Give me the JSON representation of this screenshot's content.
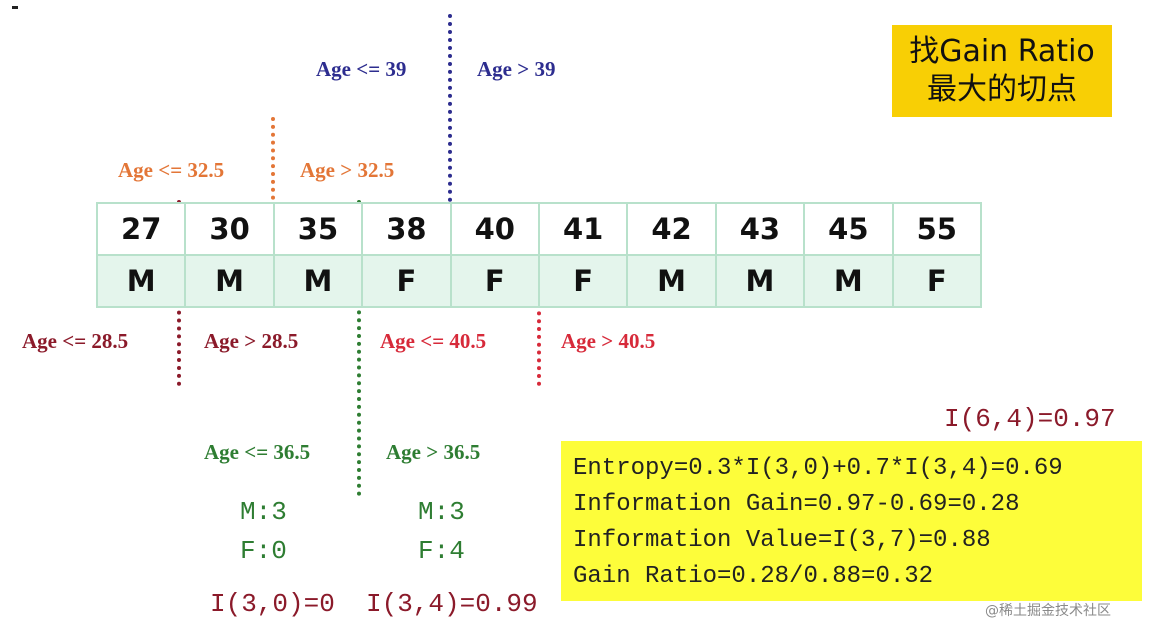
{
  "title": {
    "line1": "找Gain Ratio",
    "line2": "最大的切点"
  },
  "ages": [
    "27",
    "30",
    "35",
    "38",
    "40",
    "41",
    "42",
    "43",
    "45",
    "55"
  ],
  "genders": [
    "M",
    "M",
    "M",
    "F",
    "F",
    "F",
    "M",
    "M",
    "M",
    "F"
  ],
  "split_labels": {
    "le_39": "Age <= 39",
    "gt_39": "Age > 39",
    "le_32_5": "Age <= 32.5",
    "gt_32_5": "Age > 32.5",
    "le_28_5": "Age <= 28.5",
    "gt_28_5": "Age > 28.5",
    "le_40_5": "Age <= 40.5",
    "gt_40_5": "Age > 40.5",
    "le_36_5": "Age <= 36.5",
    "gt_36_5": "Age > 36.5"
  },
  "left_counts": {
    "m": "M:3",
    "f": "F:0",
    "info": "I(3,0)=0"
  },
  "right_counts": {
    "m": "M:3",
    "f": "F:4",
    "info": "I(3,4)=0.99"
  },
  "total_info": "I(6,4)=0.97",
  "calculations": {
    "entropy": "Entropy=0.3*I(3,0)+0.7*I(3,4)=0.69",
    "gain": "Information Gain=0.97-0.69=0.28",
    "value": "Information Value=I(3,7)=0.88",
    "ratio": "Gain Ratio=0.28/0.88=0.32"
  },
  "watermark": "@稀土掘金技术社区",
  "colors": {
    "blue": "#2d2d8f",
    "orange": "#e37637",
    "dark_red": "#8b1a2a",
    "red": "#d72a3a",
    "green": "#2e7d32",
    "title_bg": "#f8cf05",
    "calc_bg": "#fdfd3a",
    "table_border": "#b8e1cb"
  }
}
